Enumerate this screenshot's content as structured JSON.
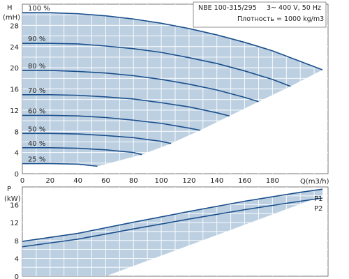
{
  "info_box": {
    "model": "NBE 100-315/295",
    "supply": "3~ 400 V, 50 Hz",
    "density": "Плотность = 1000 kg/m3"
  },
  "colors": {
    "fill": "#bdd0e2",
    "curve": "#1a4f8c",
    "grid": "#ffffff",
    "frame": "#555555"
  },
  "chart_data": [
    {
      "type": "line",
      "ylabel_top": "H",
      "ylabel_bottom": "(mH)",
      "xlabel": "Q(m3/h)",
      "xlim": [
        0,
        220
      ],
      "ylim": [
        0,
        32
      ],
      "xticks": [
        0,
        20,
        40,
        60,
        80,
        100,
        120,
        140,
        160,
        180
      ],
      "yticks": [
        0,
        4,
        8,
        12,
        16,
        20,
        24,
        28
      ],
      "grid": true,
      "series": [
        {
          "name": "100 %",
          "x": [
            0,
            20,
            40,
            60,
            80,
            100,
            120,
            140,
            160,
            180,
            200,
            216
          ],
          "y": [
            30.4,
            30.4,
            30.2,
            29.8,
            29.2,
            28.4,
            27.4,
            26.2,
            24.8,
            23.2,
            21.2,
            19.6
          ]
        },
        {
          "name": "90 %",
          "x": [
            0,
            20,
            40,
            60,
            80,
            100,
            120,
            140,
            160,
            180,
            193
          ],
          "y": [
            24.6,
            24.6,
            24.5,
            24.1,
            23.6,
            22.9,
            21.9,
            20.8,
            19.4,
            17.8,
            16.5
          ]
        },
        {
          "name": "80 %",
          "x": [
            0,
            20,
            40,
            60,
            80,
            100,
            120,
            140,
            160,
            170
          ],
          "y": [
            19.5,
            19.5,
            19.3,
            19.0,
            18.5,
            17.8,
            16.9,
            15.8,
            14.4,
            13.6
          ]
        },
        {
          "name": "70 %",
          "x": [
            0,
            20,
            40,
            60,
            80,
            100,
            120,
            140,
            149
          ],
          "y": [
            14.9,
            14.9,
            14.8,
            14.5,
            14.1,
            13.4,
            12.6,
            11.5,
            10.9
          ]
        },
        {
          "name": "60 %",
          "x": [
            0,
            20,
            40,
            60,
            80,
            100,
            120,
            128
          ],
          "y": [
            11.0,
            11.0,
            10.9,
            10.6,
            10.1,
            9.5,
            8.6,
            8.2
          ]
        },
        {
          "name": "50 %",
          "x": [
            0,
            20,
            40,
            60,
            80,
            100,
            107
          ],
          "y": [
            7.6,
            7.6,
            7.5,
            7.2,
            6.8,
            6.1,
            5.7
          ]
        },
        {
          "name": "40 %",
          "x": [
            0,
            20,
            40,
            60,
            80,
            86
          ],
          "y": [
            4.9,
            4.9,
            4.8,
            4.5,
            4.0,
            3.6
          ]
        },
        {
          "name": "25 %",
          "x": [
            0,
            20,
            40,
            54
          ],
          "y": [
            1.9,
            1.9,
            1.8,
            1.4
          ]
        }
      ]
    },
    {
      "type": "line",
      "ylabel_top": "P",
      "ylabel_bottom": "(kW)",
      "xlim": [
        0,
        220
      ],
      "ylim": [
        0,
        20
      ],
      "yticks": [
        0,
        4,
        8,
        12,
        16
      ],
      "grid": true,
      "series": [
        {
          "name": "P1",
          "x": [
            0,
            40,
            80,
            120,
            160,
            200,
            216
          ],
          "y": [
            7.8,
            9.6,
            12.1,
            14.5,
            16.8,
            18.8,
            19.5
          ]
        },
        {
          "name": "P2",
          "x": [
            0,
            40,
            80,
            120,
            160,
            200,
            216
          ],
          "y": [
            6.6,
            8.3,
            10.6,
            12.8,
            14.9,
            16.8,
            17.5
          ]
        }
      ]
    }
  ]
}
